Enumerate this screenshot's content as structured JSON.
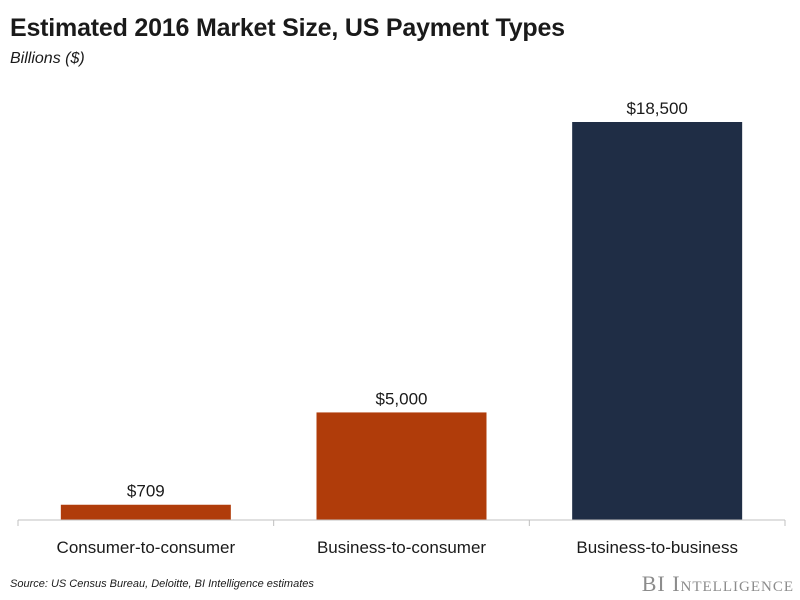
{
  "header": {
    "title": "Estimated 2016 Market Size, US Payment Types",
    "subtitle": "Billions ($)"
  },
  "footer": {
    "source": "Source: US Census Bureau, Deloitte, BI Intelligence estimates",
    "brand_prefix": "BI",
    "brand_word": "Intelligence"
  },
  "colors": {
    "orange": "#b03c0a",
    "navy": "#1f2d45",
    "axis": "#c0c0c0"
  },
  "chart_data": {
    "type": "bar",
    "title": "Estimated 2016 Market Size, US Payment Types",
    "ylabel": "Billions ($)",
    "xlabel": "",
    "categories": [
      "Consumer-to-consumer",
      "Business-to-consumer",
      "Business-to-business"
    ],
    "values": [
      709,
      5000,
      18500
    ],
    "data_labels": [
      "$709",
      "$5,000",
      "$18,500"
    ],
    "bar_colors": [
      "#b03c0a",
      "#b03c0a",
      "#1f2d45"
    ],
    "ylim": [
      0,
      18500
    ],
    "grid": false,
    "legend": "none"
  }
}
